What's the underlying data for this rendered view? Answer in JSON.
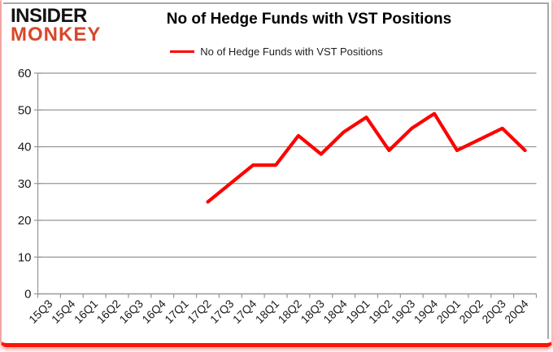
{
  "logo": {
    "line1": "INSIDER",
    "line2": "MONKEY",
    "color_line2": "#d9472b"
  },
  "title": "No of Hedge Funds with VST Positions",
  "legend": {
    "label": "No of Hedge Funds with VST Positions",
    "line_color": "#fe0000"
  },
  "chart_data": {
    "type": "line",
    "title": "No of Hedge Funds with VST Positions",
    "categories": [
      "15Q3",
      "15Q4",
      "16Q1",
      "16Q2",
      "16Q3",
      "16Q4",
      "17Q1",
      "17Q2",
      "17Q3",
      "17Q4",
      "18Q1",
      "18Q2",
      "18Q3",
      "18Q4",
      "19Q1",
      "19Q2",
      "19Q3",
      "19Q4",
      "20Q1",
      "20Q2",
      "20Q3",
      "20Q4"
    ],
    "series": [
      {
        "name": "No of Hedge Funds with VST Positions",
        "color": "#fe0000",
        "values": [
          null,
          null,
          null,
          null,
          null,
          null,
          null,
          25,
          30,
          35,
          35,
          43,
          38,
          44,
          48,
          39,
          45,
          49,
          39,
          42,
          45,
          39
        ]
      }
    ],
    "xlabel": "",
    "ylabel": "",
    "ylim": [
      0,
      60
    ],
    "yticks": [
      0,
      10,
      20,
      30,
      40,
      50,
      60
    ],
    "grid": true,
    "legend_position": "top"
  },
  "colors": {
    "series_red": "#fe0000",
    "grid_gray": "#969696",
    "frame_gray": "#a8a8a8",
    "border_pink": "#f2a5a1",
    "border_bottom_red": "#fb1507",
    "label_text": "#1a1a1a"
  }
}
